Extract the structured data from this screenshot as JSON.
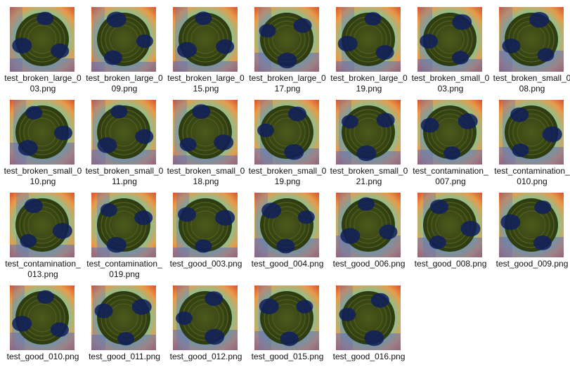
{
  "window": {
    "title": ""
  },
  "files": [
    {
      "name": "test_broken_large_003.png",
      "icon": "heatmap-thumbnail-icon"
    },
    {
      "name": "test_broken_large_009.png",
      "icon": "heatmap-thumbnail-icon"
    },
    {
      "name": "test_broken_large_015.png",
      "icon": "heatmap-thumbnail-icon"
    },
    {
      "name": "test_broken_large_017.png",
      "icon": "heatmap-thumbnail-icon"
    },
    {
      "name": "test_broken_large_019.png",
      "icon": "heatmap-thumbnail-icon"
    },
    {
      "name": "test_broken_small_003.png",
      "icon": "heatmap-thumbnail-icon"
    },
    {
      "name": "test_broken_small_008.png",
      "icon": "heatmap-thumbnail-icon"
    },
    {
      "name": "test_broken_small_010.png",
      "icon": "heatmap-thumbnail-icon"
    },
    {
      "name": "test_broken_small_011.png",
      "icon": "heatmap-thumbnail-icon"
    },
    {
      "name": "test_broken_small_018.png",
      "icon": "heatmap-thumbnail-icon"
    },
    {
      "name": "test_broken_small_019.png",
      "icon": "heatmap-thumbnail-icon"
    },
    {
      "name": "test_broken_small_021.png",
      "icon": "heatmap-thumbnail-icon"
    },
    {
      "name": "test_contamination_007.png",
      "icon": "heatmap-thumbnail-icon"
    },
    {
      "name": "test_contamination_010.png",
      "icon": "heatmap-thumbnail-icon"
    },
    {
      "name": "test_contamination_013.png",
      "icon": "heatmap-thumbnail-icon"
    },
    {
      "name": "test_contamination_019.png",
      "icon": "heatmap-thumbnail-icon"
    },
    {
      "name": "test_good_003.png",
      "icon": "heatmap-thumbnail-icon"
    },
    {
      "name": "test_good_004.png",
      "icon": "heatmap-thumbnail-icon"
    },
    {
      "name": "test_good_006.png",
      "icon": "heatmap-thumbnail-icon"
    },
    {
      "name": "test_good_008.png",
      "icon": "heatmap-thumbnail-icon"
    },
    {
      "name": "test_good_009.png",
      "icon": "heatmap-thumbnail-icon"
    },
    {
      "name": "test_good_010.png",
      "icon": "heatmap-thumbnail-icon"
    },
    {
      "name": "test_good_011.png",
      "icon": "heatmap-thumbnail-icon"
    },
    {
      "name": "test_good_012.png",
      "icon": "heatmap-thumbnail-icon"
    },
    {
      "name": "test_good_015.png",
      "icon": "heatmap-thumbnail-icon"
    },
    {
      "name": "test_good_016.png",
      "icon": "heatmap-thumbnail-icon"
    }
  ],
  "colors": {
    "background": "#ffffff",
    "caption_text": "#111111",
    "heat_red": "#d9532a",
    "heat_orange": "#e89a4a",
    "heat_yellow": "#c9d27a",
    "heat_green": "#7fc79a",
    "heat_blue": "#5f6fb8",
    "heat_dark_blue": "#0f1f5c",
    "bottle_olive": "#4d5a1c",
    "bottle_dark": "#2d3a10"
  }
}
